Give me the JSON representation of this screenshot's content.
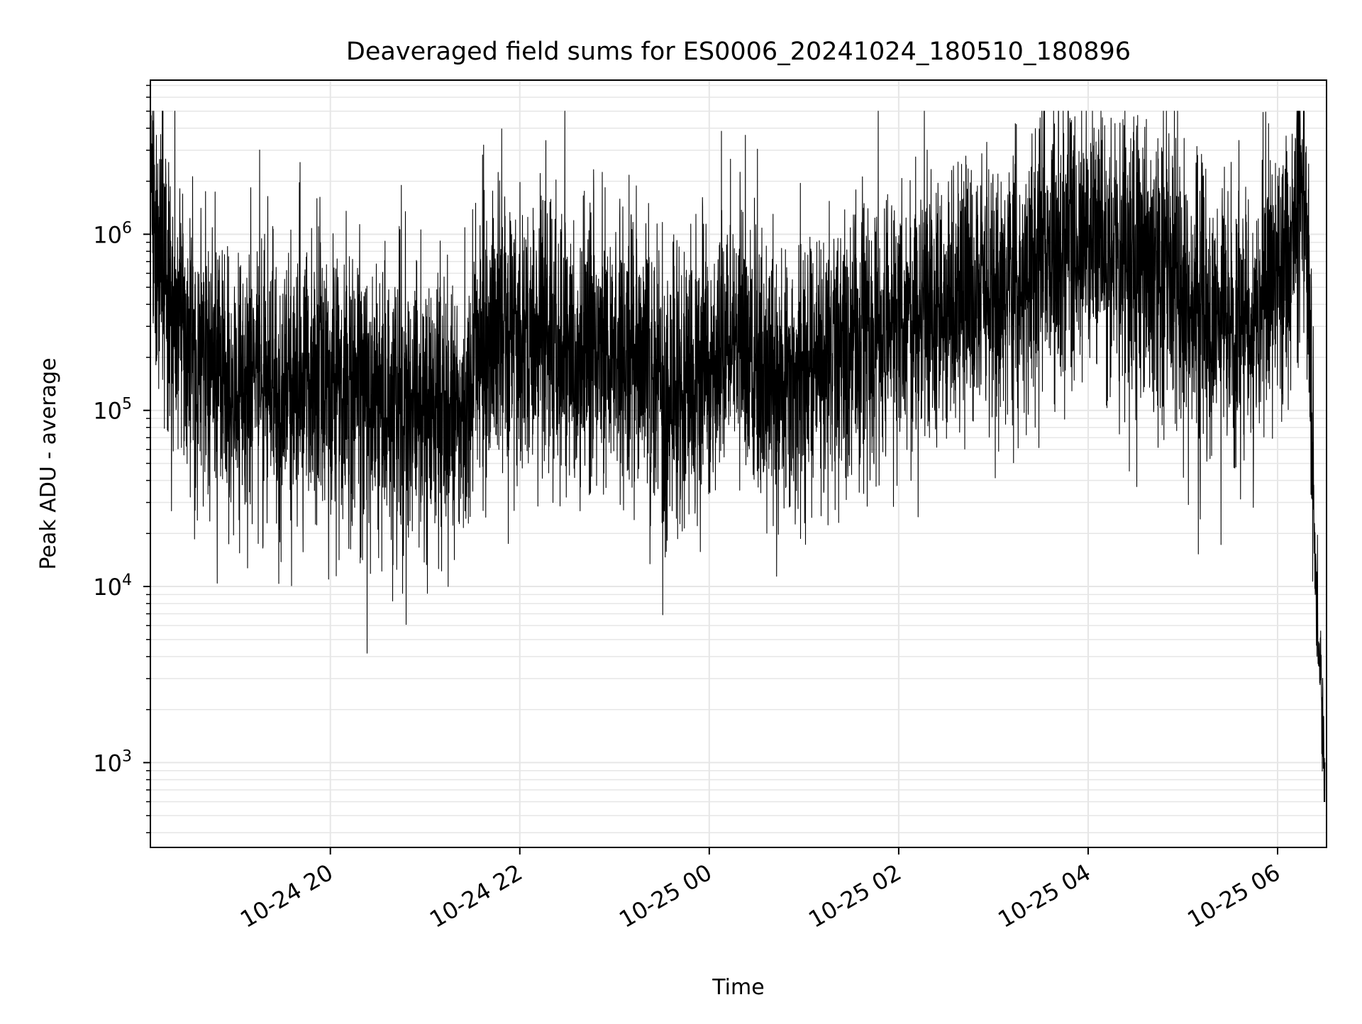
{
  "chart_data": {
    "type": "line",
    "title": "Deaveraged field sums for ES0006_20241024_180510_180896",
    "xlabel": "Time",
    "ylabel": "Peak ADU - average",
    "yscale": "log",
    "grid": true,
    "legend": "none",
    "line_color": "#000000",
    "grid_color": "#e6e6e6",
    "xlim": [
      "2024-10-24T18:06:00",
      "2024-10-25T06:31:00"
    ],
    "ylim": [
      330,
      7500000
    ],
    "x_ticks": [
      {
        "t": "2024-10-24T20:00:00",
        "label": "10-24 20"
      },
      {
        "t": "2024-10-24T22:00:00",
        "label": "10-24 22"
      },
      {
        "t": "2024-10-25T00:00:00",
        "label": "10-25 00"
      },
      {
        "t": "2024-10-25T02:00:00",
        "label": "10-25 02"
      },
      {
        "t": "2024-10-25T04:00:00",
        "label": "10-25 04"
      },
      {
        "t": "2024-10-25T06:00:00",
        "label": "10-25 06"
      }
    ],
    "y_ticks": [
      {
        "value": 1000,
        "base": "10",
        "exp": "3"
      },
      {
        "value": 10000,
        "base": "10",
        "exp": "4"
      },
      {
        "value": 100000,
        "base": "10",
        "exp": "5"
      },
      {
        "value": 1000000,
        "base": "10",
        "exp": "6"
      }
    ],
    "series": [
      {
        "x": [
          "2024-10-24T18:06:00",
          "2024-10-24T18:10:00",
          "2024-10-24T18:15:00",
          "2024-10-24T18:20:00",
          "2024-10-24T18:30:00",
          "2024-10-24T18:40:00",
          "2024-10-24T18:50:00",
          "2024-10-24T19:00:00",
          "2024-10-24T19:10:00",
          "2024-10-24T19:20:00",
          "2024-10-24T19:30:00",
          "2024-10-24T19:40:00",
          "2024-10-24T19:50:00",
          "2024-10-24T20:00:00",
          "2024-10-24T20:15:00",
          "2024-10-24T20:30:00",
          "2024-10-24T20:45:00",
          "2024-10-24T21:00:00",
          "2024-10-24T21:15:00",
          "2024-10-24T21:30:00",
          "2024-10-24T21:45:00",
          "2024-10-24T22:00:00",
          "2024-10-24T22:15:00",
          "2024-10-24T22:30:00",
          "2024-10-24T22:45:00",
          "2024-10-24T23:00:00",
          "2024-10-24T23:15:00",
          "2024-10-24T23:30:00",
          "2024-10-24T23:45:00",
          "2024-10-25T00:00:00",
          "2024-10-25T00:15:00",
          "2024-10-25T00:30:00",
          "2024-10-25T00:45:00",
          "2024-10-25T01:00:00",
          "2024-10-25T01:15:00",
          "2024-10-25T01:30:00",
          "2024-10-25T01:45:00",
          "2024-10-25T02:00:00",
          "2024-10-25T02:15:00",
          "2024-10-25T02:30:00",
          "2024-10-25T02:45:00",
          "2024-10-25T03:00:00",
          "2024-10-25T03:15:00",
          "2024-10-25T03:30:00",
          "2024-10-25T03:45:00",
          "2024-10-25T04:00:00",
          "2024-10-25T04:15:00",
          "2024-10-25T04:30:00",
          "2024-10-25T04:45:00",
          "2024-10-25T05:00:00",
          "2024-10-25T05:15:00",
          "2024-10-25T05:30:00",
          "2024-10-25T05:45:00",
          "2024-10-25T06:00:00",
          "2024-10-25T06:10:00",
          "2024-10-25T06:16:00",
          "2024-10-25T06:20:00",
          "2024-10-25T06:24:00",
          "2024-10-25T06:27:00",
          "2024-10-25T06:30:00"
        ],
        "y": [
          3000000,
          600000,
          700000,
          400000,
          250000,
          200000,
          160000,
          140000,
          150000,
          140000,
          130000,
          150000,
          160000,
          140000,
          120000,
          110000,
          100000,
          110000,
          100000,
          130000,
          300000,
          280000,
          250000,
          230000,
          240000,
          220000,
          200000,
          150000,
          120000,
          200000,
          250000,
          180000,
          160000,
          150000,
          200000,
          220000,
          260000,
          300000,
          350000,
          400000,
          450000,
          420000,
          500000,
          700000,
          800000,
          900000,
          750000,
          700000,
          600000,
          500000,
          350000,
          350000,
          300000,
          600000,
          900000,
          2000000,
          500000,
          10000,
          3500,
          900
        ]
      }
    ]
  }
}
